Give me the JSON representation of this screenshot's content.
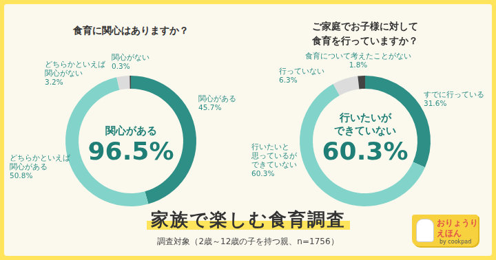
{
  "chart_data": [
    {
      "type": "doughnut",
      "title": "食育に関心はありますか？",
      "categories": [
        "関心がある",
        "どちらかといえば\n関心がある",
        "どちらかといえば\n関心がない",
        "関心がない"
      ],
      "values": [
        45.7,
        50.8,
        3.2,
        0.3
      ],
      "value_labels": [
        "45.7%",
        "50.8%",
        "3.2%",
        "0.3%"
      ],
      "colors": [
        "#2e8f86",
        "#82d4ca",
        "#dcdcdc",
        "#444444"
      ],
      "data_labels": true,
      "annotations": [
        "関心がある",
        "96.5%"
      ]
    },
    {
      "type": "doughnut",
      "title": "ご家庭でお子様に対して\n食育を行っていますか？",
      "categories": [
        "すでに行っている",
        "行いたいと\n思っているが\nできていない",
        "行っていない",
        "食育について考えたことがない"
      ],
      "values": [
        31.6,
        60.3,
        6.3,
        1.8
      ],
      "value_labels": [
        "31.6%",
        "60.3%",
        "6.3%",
        "1.8%"
      ],
      "colors": [
        "#2e8f86",
        "#82d4ca",
        "#dcdcdc",
        "#444444"
      ],
      "data_labels": true,
      "annotations": [
        "行いたいが",
        "できていない",
        "60.3%"
      ]
    }
  ],
  "page": {
    "title": "家族で楽しむ食育調査",
    "subtitle": "調査対象（2歳～12歳の子を持つ親、n=1756）",
    "logo": [
      "おりょうり",
      "えほん",
      "by cookpad"
    ]
  }
}
